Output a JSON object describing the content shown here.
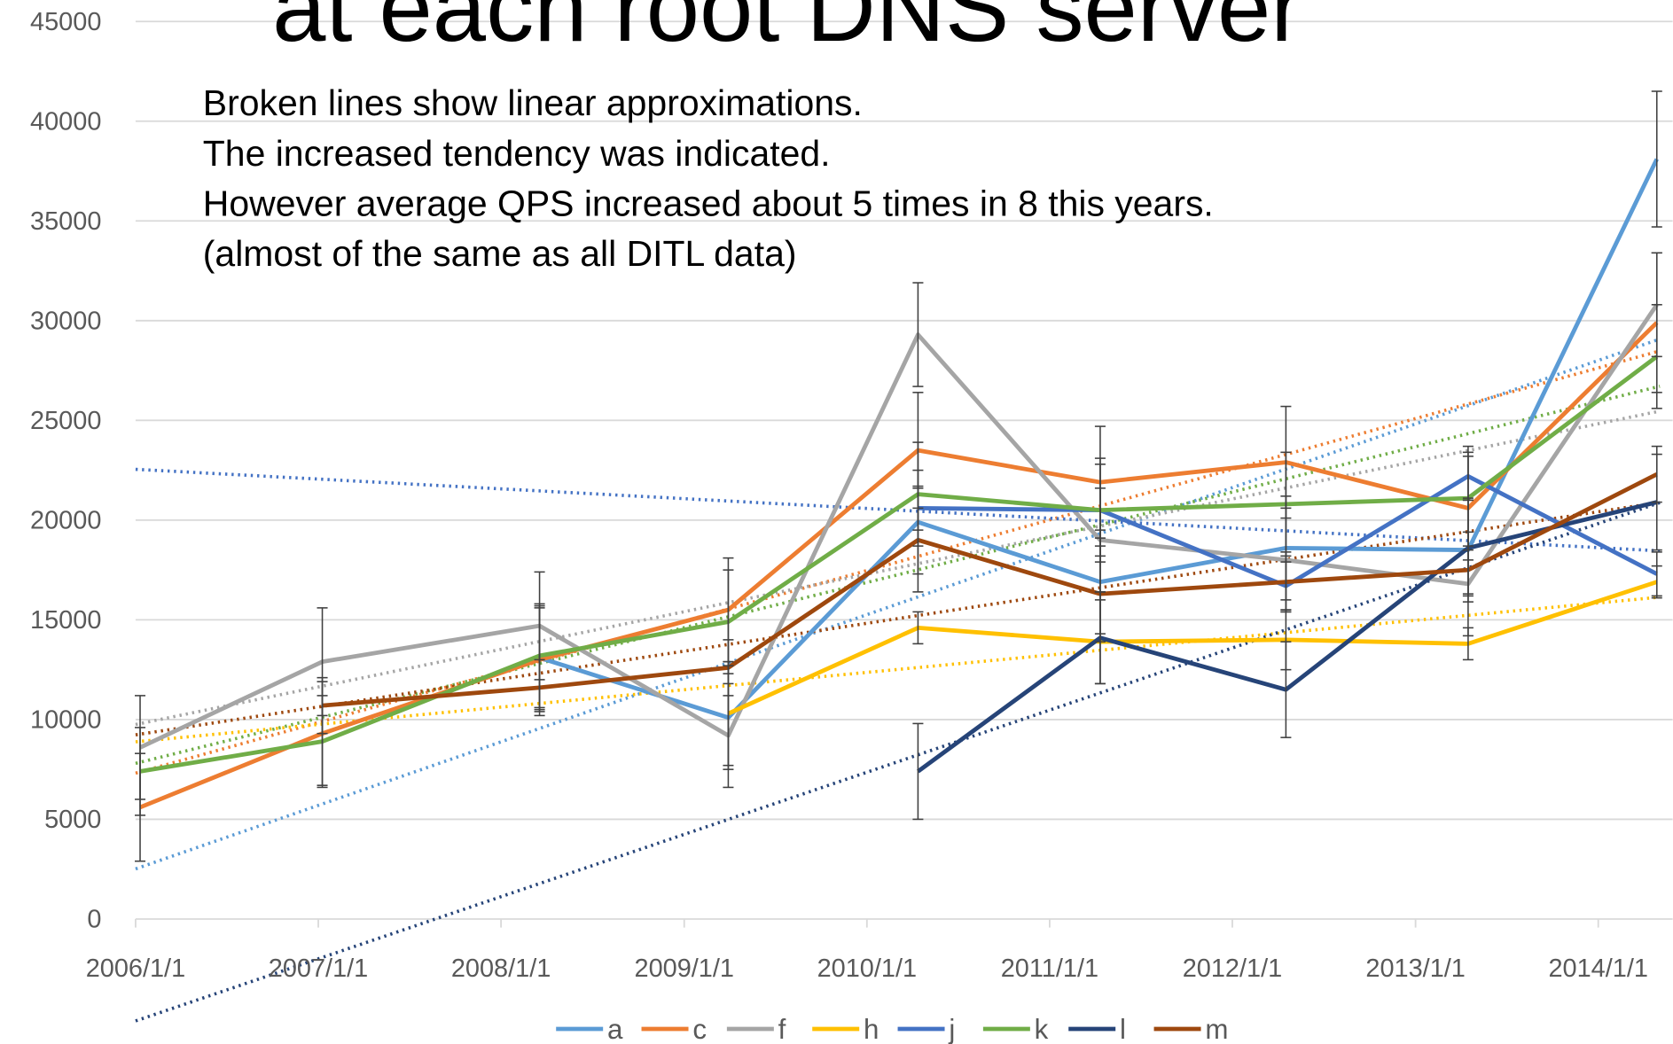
{
  "chart_data": {
    "type": "line",
    "title": "at each root DNS server",
    "annotations": [
      "Broken lines show linear approximations.",
      "The increased tendency was indicated.",
      "However average QPS increased about 5 times in 8 this years.",
      "(almost of the same as all DITL data)"
    ],
    "x": [
      "2006/1/10",
      "2007/1/9",
      "2008/3/18",
      "2009/3/30",
      "2010/4/13",
      "2011/4/12",
      "2012/4/17",
      "2013/4/16",
      "2014/4/28"
    ],
    "xlim": [
      "2006/1/1",
      "2014/5/4"
    ],
    "xticks": [
      "2006/1/1",
      "2007/1/1",
      "2008/1/1",
      "2009/1/1",
      "2010/1/1",
      "2011/1/1",
      "2012/1/1",
      "2013/1/1",
      "2014/1/1"
    ],
    "ylim": [
      0,
      45000
    ],
    "yticks": [
      0,
      5000,
      10000,
      15000,
      20000,
      25000,
      30000,
      35000,
      40000,
      45000
    ],
    "grid": true,
    "trendline": "linear",
    "legend": "bottom",
    "series": [
      {
        "name": "a",
        "color": "#5b9bd5",
        "values": [
          null,
          null,
          13100,
          10100,
          19900,
          16900,
          18600,
          18500,
          38100
        ],
        "errors": [
          null,
          null,
          2600,
          2600,
          2600,
          2600,
          2600,
          2600,
          3400
        ]
      },
      {
        "name": "c",
        "color": "#ed7d31",
        "values": [
          5600,
          9300,
          13000,
          15500,
          23500,
          21900,
          22900,
          20600,
          29900
        ],
        "errors": [
          2700,
          2600,
          2600,
          2600,
          2900,
          2800,
          2800,
          2600,
          3500
        ]
      },
      {
        "name": "f",
        "color": "#a5a5a5",
        "values": [
          8600,
          12900,
          14700,
          9200,
          29300,
          19000,
          18000,
          16800,
          30800
        ],
        "errors": [
          2600,
          2700,
          2700,
          2600,
          2600,
          2600,
          2600,
          2600,
          2600
        ]
      },
      {
        "name": "h",
        "color": "#ffc000",
        "values": [
          null,
          null,
          null,
          10300,
          14600,
          13900,
          14000,
          13800,
          16900
        ],
        "errors": [
          null,
          null,
          null,
          2600,
          800,
          2100,
          1500,
          800,
          800
        ]
      },
      {
        "name": "j",
        "color": "#4472c4",
        "values": [
          null,
          null,
          null,
          null,
          20600,
          20500,
          16700,
          22200,
          17300
        ],
        "errors": [
          null,
          null,
          null,
          null,
          1100,
          2300,
          1200,
          1200,
          1100
        ]
      },
      {
        "name": "k",
        "color": "#70ad47",
        "values": [
          7400,
          8900,
          13200,
          14900,
          21300,
          20500,
          20800,
          21100,
          28200
        ],
        "errors": [
          2200,
          2300,
          2600,
          2600,
          2600,
          2600,
          2600,
          2600,
          2600
        ]
      },
      {
        "name": "l",
        "color": "#264478",
        "values": [
          null,
          null,
          null,
          null,
          7400,
          14100,
          11500,
          18600,
          20900
        ],
        "errors": [
          null,
          null,
          null,
          null,
          2400,
          2300,
          2400,
          2400,
          2400
        ]
      },
      {
        "name": "m",
        "color": "#9e480e",
        "values": [
          null,
          10700,
          11600,
          12600,
          19000,
          16300,
          16900,
          17500,
          22300
        ],
        "errors": [
          null,
          1400,
          1400,
          1400,
          2600,
          2400,
          1500,
          1200,
          1400
        ]
      }
    ]
  }
}
